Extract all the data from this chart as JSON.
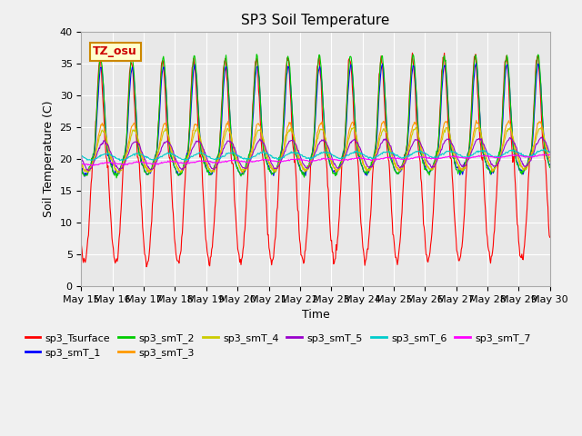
{
  "title": "SP3 Soil Temperature",
  "xlabel": "Time",
  "ylabel": "Soil Temperature (C)",
  "ylim": [
    0,
    40
  ],
  "annotation": "TZ_osu",
  "series_colors": {
    "sp3_Tsurface": "#ff0000",
    "sp3_smT_1": "#0000ff",
    "sp3_smT_2": "#00cc00",
    "sp3_smT_3": "#ff9900",
    "sp3_smT_4": "#cccc00",
    "sp3_smT_5": "#9900cc",
    "sp3_smT_6": "#00cccc",
    "sp3_smT_7": "#ff00ff"
  },
  "x_tick_labels": [
    "May 15",
    "May 16",
    "May 17",
    "May 18",
    "May 19",
    "May 20",
    "May 21",
    "May 22",
    "May 23",
    "May 24",
    "May 25",
    "May 26",
    "May 27",
    "May 28",
    "May 29",
    "May 30"
  ],
  "background_color": "#e8e8e8",
  "grid_color": "#ffffff",
  "title_fontsize": 11,
  "axis_fontsize": 9,
  "legend_fontsize": 8,
  "fig_width": 6.4,
  "fig_height": 4.8,
  "dpi": 100
}
